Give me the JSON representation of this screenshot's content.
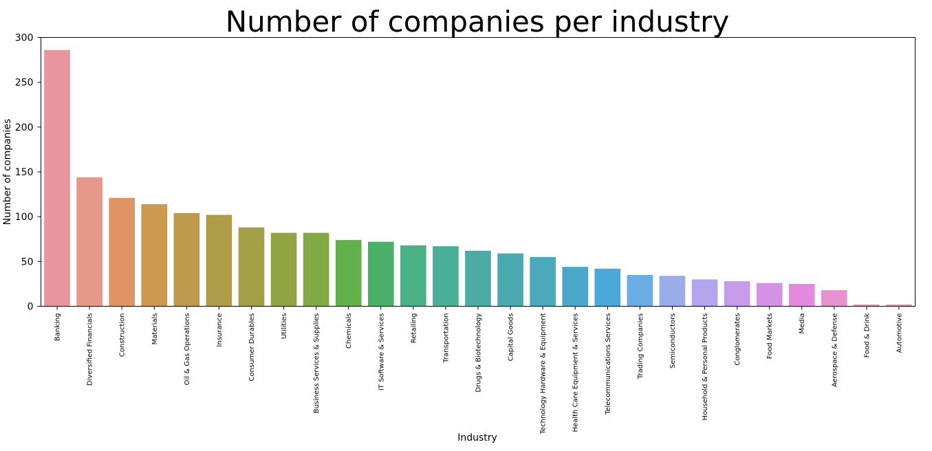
{
  "chart_data": {
    "type": "bar",
    "title": "Number of companies per industry",
    "xlabel": "Industry",
    "ylabel": "Number of companies",
    "ylim": [
      0,
      300
    ],
    "yticks": [
      0,
      50,
      100,
      150,
      200,
      250,
      300
    ],
    "grid": false,
    "legend": "none",
    "categories": [
      "Banking",
      "Diversified Financials",
      "Construction",
      "Materials",
      "Oil & Gas Operations",
      "Insurance",
      "Consumer Durables",
      "Utilities",
      "Business Services & Supplies",
      "Chemicals",
      "IT Software & Services",
      "Retailing",
      "Transportation",
      "Drugs & Biotechnology",
      "Capital Goods",
      "Technology Hardware & Equipment",
      "Health Care Equipment & Services",
      "Telecommunications Services",
      "Trading Companies",
      "Semiconductors",
      "Household & Personal Products",
      "Conglomerates",
      "Food Markets",
      "Media",
      "Aerospace & Defense",
      "Food & Drink",
      "Automotive"
    ],
    "values": [
      286,
      144,
      121,
      114,
      104,
      102,
      88,
      82,
      82,
      74,
      72,
      68,
      67,
      62,
      59,
      55,
      44,
      42,
      35,
      34,
      30,
      28,
      26,
      25,
      18,
      2,
      2
    ],
    "colors": [
      "#e8959f",
      "#e6988a",
      "#e09466",
      "#cd984f",
      "#bf9a4c",
      "#ae9c48",
      "#a29f46",
      "#93a444",
      "#82aa44",
      "#61b04a",
      "#4ab067",
      "#4ab085",
      "#4aaf97",
      "#4aaca5",
      "#4aaab0",
      "#4aa9bb",
      "#4aa8cb",
      "#4aa9d8",
      "#6aade5",
      "#9aacea",
      "#b2a5ee",
      "#c59bea",
      "#d492e4",
      "#e38adf",
      "#e692cf",
      "#e68fc0",
      "#e88fb1"
    ]
  }
}
